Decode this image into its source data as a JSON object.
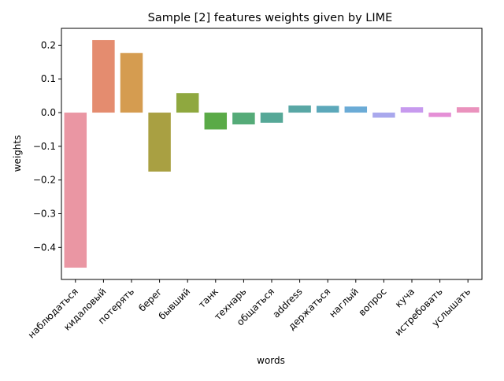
{
  "chart_data": {
    "type": "bar",
    "title": "Sample [2] features weights given by LIME",
    "xlabel": "words",
    "ylabel": "weights",
    "ylim": [
      -0.495,
      0.25
    ],
    "yticks": [
      0.2,
      0.1,
      0.0,
      -0.1,
      -0.2,
      -0.3,
      -0.4
    ],
    "ytick_labels": [
      "0.2",
      "0.1",
      "0.0",
      "−0.1",
      "−0.2",
      "−0.3",
      "−0.4"
    ],
    "categories": [
      "наблюдаться",
      "кидаловый",
      "потерять",
      "берег",
      "бывший",
      "танк",
      "технарь",
      "общаться",
      "address",
      "держаться",
      "наглый",
      "вопрос",
      "куча",
      "истребовать",
      "услышать"
    ],
    "values": [
      -0.46,
      0.215,
      0.177,
      -0.175,
      0.058,
      -0.05,
      -0.035,
      -0.03,
      0.021,
      0.02,
      0.018,
      -0.015,
      0.016,
      -0.013,
      0.016
    ],
    "colors": [
      "#ea96a3",
      "#e48c6f",
      "#d59c50",
      "#a9a042",
      "#8fa83f",
      "#5aaa47",
      "#55ab78",
      "#56a897",
      "#59a7a5",
      "#5ca8ba",
      "#6babd6",
      "#a9a8ed",
      "#c79aee",
      "#e58fd6",
      "#ea92bd"
    ],
    "grid": false,
    "legend": "none"
  }
}
